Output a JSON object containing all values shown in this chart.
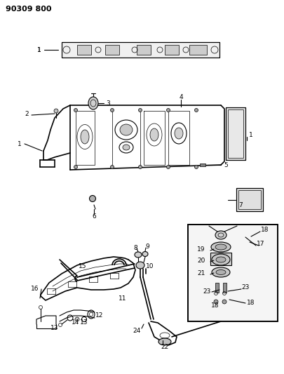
{
  "title_code": "90309 800",
  "bg_color": "#ffffff",
  "line_color": "#000000",
  "fig_width": 4.06,
  "fig_height": 5.33,
  "dpi": 100,
  "title_fontsize": 8,
  "label_fontsize": 6.5
}
